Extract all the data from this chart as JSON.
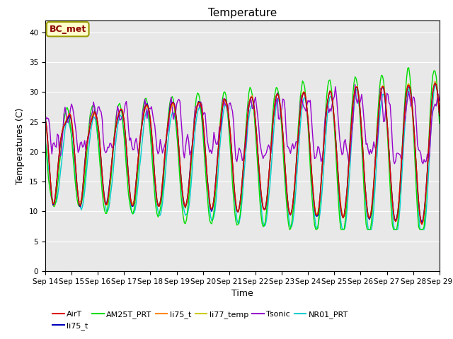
{
  "title": "Temperature",
  "xlabel": "Time",
  "ylabel": "Temperatures (C)",
  "ylim": [
    0,
    42
  ],
  "yticks": [
    0,
    5,
    10,
    15,
    20,
    25,
    30,
    35,
    40
  ],
  "annotation_text": "BC_met",
  "legend_labels": [
    "AirT",
    "li75_t",
    "AM25T_PRT",
    "li75_t",
    "li77_temp",
    "Tsonic",
    "NR01_PRT"
  ],
  "legend_colors": [
    "#dd0000",
    "#0000bb",
    "#00dd00",
    "#ff8800",
    "#cccc00",
    "#9900cc",
    "#00cccc"
  ],
  "xtick_labels": [
    "Sep 14",
    "Sep 15",
    "Sep 16",
    "Sep 17",
    "Sep 18",
    "Sep 19",
    "Sep 20",
    "Sep 21",
    "Sep 22",
    "Sep 23",
    "Sep 24",
    "Sep 25",
    "Sep 26",
    "Sep 27",
    "Sep 28",
    "Sep 29"
  ],
  "xtick_positions": [
    0,
    24,
    48,
    72,
    96,
    120,
    144,
    168,
    192,
    216,
    240,
    264,
    288,
    312,
    336,
    360
  ]
}
